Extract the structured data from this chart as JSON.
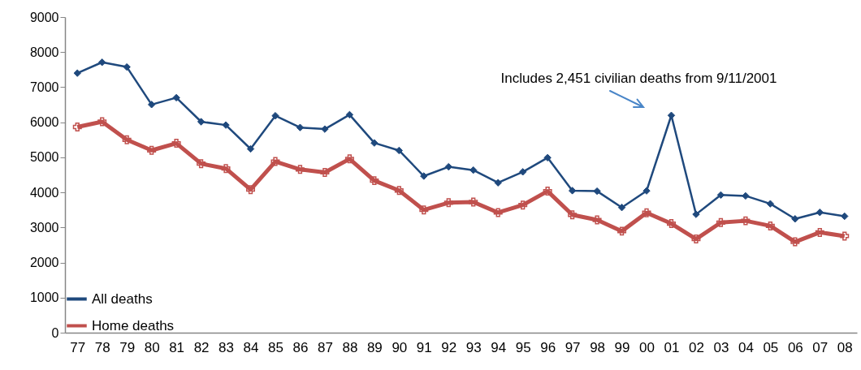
{
  "chart_data": {
    "type": "line",
    "categories": [
      "77",
      "78",
      "79",
      "80",
      "81",
      "82",
      "83",
      "84",
      "85",
      "86",
      "87",
      "88",
      "89",
      "90",
      "91",
      "92",
      "93",
      "94",
      "95",
      "96",
      "97",
      "98",
      "99",
      "00",
      "01",
      "02",
      "03",
      "04",
      "05",
      "06",
      "07",
      "08"
    ],
    "series": [
      {
        "name": "All deaths",
        "color": "#1f497d",
        "marker": "diamond",
        "values": [
          7400,
          7710,
          7575,
          6505,
          6700,
          6015,
          5920,
          5240,
          6185,
          5850,
          5805,
          6215,
          5410,
          5195,
          4465,
          4730,
          4635,
          4275,
          4585,
          4990,
          4050,
          4035,
          3570,
          4045,
          6195,
          3375,
          3925,
          3900,
          3675,
          3245,
          3430,
          3320
        ]
      },
      {
        "name": "Home deaths",
        "color": "#c0504d",
        "marker": "cross",
        "values": [
          5865,
          6015,
          5500,
          5200,
          5400,
          4820,
          4680,
          4080,
          4880,
          4655,
          4570,
          4955,
          4335,
          4055,
          3500,
          3705,
          3725,
          3425,
          3640,
          4035,
          3360,
          3215,
          2895,
          3420,
          3110,
          2670,
          3140,
          3190,
          3045,
          2590,
          2860,
          2755
        ]
      }
    ],
    "ylim": [
      0,
      9000
    ],
    "yticks": [
      0,
      1000,
      2000,
      3000,
      4000,
      5000,
      6000,
      7000,
      8000,
      9000
    ],
    "grid": false,
    "legend": "bottom left",
    "annotations": [
      {
        "text": "Includes 2,451 civilian deaths from 9/11/2001",
        "x": "01",
        "y": 6195
      }
    ]
  }
}
